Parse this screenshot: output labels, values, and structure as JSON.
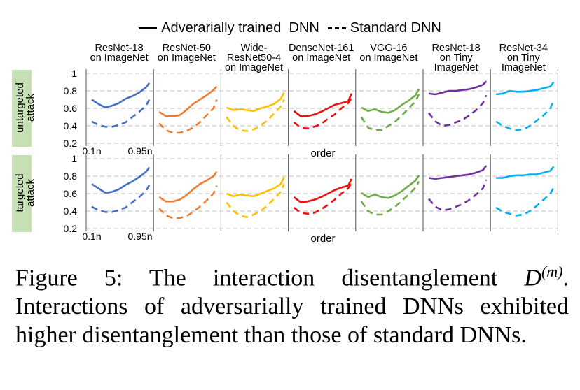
{
  "legend": {
    "adversarial": "Adverarially trained  DNN",
    "standard": "Standard DNN"
  },
  "colors": {
    "ResNet-18 on ImageNet": "#4472c4",
    "ResNet-50 on ImageNet": "#ed7d31",
    "Wide-ResNet50-4 on ImageNet": "#ffc000",
    "DenseNet-161 on ImageNet": "#ee1111",
    "VGG-16 on ImageNet": "#70ad47",
    "ResNet-18 on Tiny ImageNet": "#7030a0",
    "ResNet-34 on Tiny ImageNet": "#00b0f0",
    "untargeted_label_bg": "#c6e0b4",
    "targeted_label_bg": "#c6e0b4"
  },
  "chart_data": {
    "type": "line",
    "x_tick_labels": [
      "0.1n",
      "0.95n"
    ],
    "xlabel": "order",
    "y_ticks": [
      "1",
      "0.8",
      "0.6",
      "0.4",
      "0.2"
    ],
    "ylim": [
      0.2,
      1.0
    ],
    "grid": "dashed horizontal",
    "x": [
      0.1,
      0.2,
      0.3,
      0.4,
      0.5,
      0.6,
      0.7,
      0.8,
      0.9,
      0.95
    ],
    "models": [
      {
        "title_lines": [
          "ResNet-18",
          "on ImageNet"
        ]
      },
      {
        "title_lines": [
          "ResNet-50",
          "on ImageNet"
        ]
      },
      {
        "title_lines": [
          "Wide-",
          "ResNet50-4",
          "on ImageNet"
        ]
      },
      {
        "title_lines": [
          "DenseNet-161",
          "on ImageNet"
        ]
      },
      {
        "title_lines": [
          "VGG-16",
          "on ImageNet"
        ]
      },
      {
        "title_lines": [
          "ResNet-18",
          "on Tiny",
          "ImageNet"
        ]
      },
      {
        "title_lines": [
          "ResNet-34",
          "on Tiny",
          "ImageNet"
        ]
      }
    ],
    "rows": [
      {
        "label_lines": [
          "untargeted",
          "attack"
        ],
        "panels": [
          {
            "adversarial": [
              0.7,
              0.65,
              0.61,
              0.63,
              0.66,
              0.71,
              0.74,
              0.78,
              0.84,
              0.89
            ],
            "standard": [
              0.45,
              0.41,
              0.39,
              0.39,
              0.41,
              0.44,
              0.5,
              0.56,
              0.63,
              0.7
            ]
          },
          {
            "adversarial": [
              0.56,
              0.51,
              0.51,
              0.52,
              0.58,
              0.65,
              0.7,
              0.75,
              0.81,
              0.85
            ],
            "standard": [
              0.43,
              0.35,
              0.32,
              0.32,
              0.34,
              0.38,
              0.44,
              0.52,
              0.6,
              0.7
            ]
          },
          {
            "adversarial": [
              0.61,
              0.58,
              0.59,
              0.58,
              0.57,
              0.6,
              0.62,
              0.65,
              0.71,
              0.78
            ],
            "standard": [
              0.5,
              0.4,
              0.35,
              0.34,
              0.36,
              0.4,
              0.46,
              0.54,
              0.62,
              0.7
            ]
          },
          {
            "adversarial": [
              0.57,
              0.51,
              0.51,
              0.53,
              0.56,
              0.6,
              0.64,
              0.66,
              0.68,
              0.77
            ],
            "standard": [
              0.44,
              0.38,
              0.37,
              0.39,
              0.42,
              0.48,
              0.53,
              0.6,
              0.66,
              0.72
            ]
          },
          {
            "adversarial": [
              0.61,
              0.57,
              0.59,
              0.56,
              0.55,
              0.58,
              0.64,
              0.69,
              0.75,
              0.82
            ],
            "standard": [
              0.5,
              0.38,
              0.35,
              0.35,
              0.4,
              0.45,
              0.52,
              0.6,
              0.68,
              0.76
            ]
          },
          {
            "adversarial": [
              0.77,
              0.76,
              0.78,
              0.8,
              0.8,
              0.81,
              0.82,
              0.84,
              0.87,
              0.91
            ],
            "standard": [
              0.55,
              0.45,
              0.4,
              0.41,
              0.44,
              0.47,
              0.52,
              0.58,
              0.66,
              0.75
            ]
          },
          {
            "adversarial": [
              0.76,
              0.77,
              0.8,
              0.79,
              0.79,
              0.8,
              0.81,
              0.83,
              0.85,
              0.9
            ],
            "standard": [
              0.45,
              0.4,
              0.37,
              0.35,
              0.36,
              0.4,
              0.46,
              0.52,
              0.6,
              0.69
            ]
          }
        ]
      },
      {
        "label_lines": [
          "targeted",
          "attack"
        ],
        "panels": [
          {
            "adversarial": [
              0.71,
              0.66,
              0.61,
              0.62,
              0.65,
              0.7,
              0.74,
              0.79,
              0.85,
              0.9
            ],
            "standard": [
              0.45,
              0.41,
              0.39,
              0.39,
              0.41,
              0.44,
              0.5,
              0.56,
              0.63,
              0.7
            ]
          },
          {
            "adversarial": [
              0.56,
              0.51,
              0.51,
              0.53,
              0.58,
              0.65,
              0.71,
              0.75,
              0.8,
              0.85
            ],
            "standard": [
              0.43,
              0.35,
              0.32,
              0.32,
              0.34,
              0.39,
              0.45,
              0.52,
              0.6,
              0.69
            ]
          },
          {
            "adversarial": [
              0.6,
              0.57,
              0.59,
              0.58,
              0.57,
              0.6,
              0.63,
              0.66,
              0.71,
              0.79
            ],
            "standard": [
              0.5,
              0.4,
              0.35,
              0.33,
              0.36,
              0.4,
              0.46,
              0.54,
              0.62,
              0.71
            ]
          },
          {
            "adversarial": [
              0.56,
              0.5,
              0.51,
              0.53,
              0.56,
              0.6,
              0.64,
              0.67,
              0.69,
              0.77
            ],
            "standard": [
              0.44,
              0.38,
              0.37,
              0.38,
              0.42,
              0.47,
              0.53,
              0.6,
              0.66,
              0.72
            ]
          },
          {
            "adversarial": [
              0.61,
              0.56,
              0.59,
              0.56,
              0.55,
              0.58,
              0.63,
              0.69,
              0.75,
              0.81
            ],
            "standard": [
              0.51,
              0.4,
              0.36,
              0.36,
              0.4,
              0.45,
              0.52,
              0.59,
              0.67,
              0.74
            ]
          },
          {
            "adversarial": [
              0.78,
              0.77,
              0.78,
              0.79,
              0.8,
              0.81,
              0.82,
              0.84,
              0.87,
              0.92
            ],
            "standard": [
              0.54,
              0.45,
              0.41,
              0.42,
              0.45,
              0.48,
              0.53,
              0.59,
              0.66,
              0.76
            ]
          },
          {
            "adversarial": [
              0.78,
              0.78,
              0.8,
              0.81,
              0.81,
              0.82,
              0.82,
              0.84,
              0.86,
              0.91
            ],
            "standard": [
              0.44,
              0.39,
              0.37,
              0.35,
              0.36,
              0.4,
              0.46,
              0.53,
              0.6,
              0.67
            ]
          }
        ]
      }
    ]
  },
  "caption": {
    "prefix": "Figure 5: The interaction disentanglement",
    "symbol": "D",
    "superscript": "(m)",
    "rest": ". Interactions of adversarially trained DNNs exhibited higher disentanglement than those of standard DNNs."
  }
}
